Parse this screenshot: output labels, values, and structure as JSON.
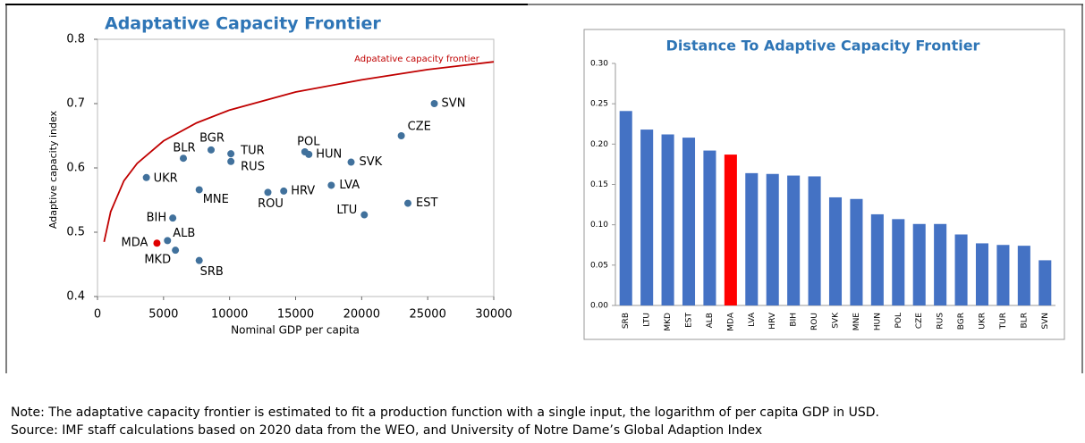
{
  "chart_data": [
    {
      "type": "scatter",
      "title": "Adaptative Capacity Frontier",
      "xlabel": "Nominal GDP per capita",
      "ylabel": "Adaptive capacity index",
      "xlim": [
        0,
        30000
      ],
      "ylim": [
        0.4,
        0.8
      ],
      "xticks": [
        0,
        5000,
        10000,
        15000,
        20000,
        25000,
        30000
      ],
      "yticks": [
        0.4,
        0.5,
        0.6,
        0.7,
        0.8
      ],
      "points": {
        "labels": [
          "SVN",
          "CZE",
          "POL",
          "HUN",
          "SVK",
          "TUR",
          "RUS",
          "BGR",
          "BLR",
          "UKR",
          "MNE",
          "ROU",
          "HRV",
          "LVA",
          "EST",
          "LTU",
          "BIH",
          "ALB",
          "MDA",
          "MKD",
          "SRB"
        ],
        "x": [
          25500,
          23000,
          15700,
          16000,
          19200,
          10100,
          10100,
          8600,
          6500,
          3700,
          7700,
          12900,
          14100,
          17700,
          23500,
          20200,
          5700,
          5300,
          4500,
          5900,
          7700
        ],
        "values": [
          0.7,
          0.65,
          0.625,
          0.621,
          0.609,
          0.622,
          0.61,
          0.628,
          0.615,
          0.585,
          0.566,
          0.562,
          0.564,
          0.573,
          0.545,
          0.527,
          0.522,
          0.487,
          0.483,
          0.472,
          0.456
        ],
        "colors": [
          "#41719c",
          "#41719c",
          "#41719c",
          "#41719c",
          "#41719c",
          "#41719c",
          "#41719c",
          "#41719c",
          "#41719c",
          "#41719c",
          "#41719c",
          "#41719c",
          "#41719c",
          "#41719c",
          "#41719c",
          "#41719c",
          "#41719c",
          "#41719c",
          "#e00000",
          "#41719c",
          "#41719c"
        ]
      },
      "series": [
        {
          "name": "Adpatative capacity frontier",
          "color": "#c00000",
          "x": [
            500,
            1000,
            2000,
            3000,
            5000,
            7500,
            10000,
            15000,
            20000,
            25000,
            30000
          ],
          "values": [
            0.485,
            0.532,
            0.58,
            0.607,
            0.642,
            0.67,
            0.69,
            0.718,
            0.737,
            0.753,
            0.765
          ]
        }
      ]
    },
    {
      "type": "bar",
      "title": "Distance To Adaptive Capacity Frontier",
      "categories": [
        "SRB",
        "LTU",
        "MKD",
        "EST",
        "ALB",
        "MDA",
        "LVA",
        "HRV",
        "BIH",
        "ROU",
        "SVK",
        "MNE",
        "HUN",
        "POL",
        "CZE",
        "RUS",
        "BGR",
        "UKR",
        "TUR",
        "BLR",
        "SVN"
      ],
      "values": [
        0.241,
        0.218,
        0.212,
        0.208,
        0.192,
        0.187,
        0.164,
        0.163,
        0.161,
        0.16,
        0.134,
        0.132,
        0.113,
        0.107,
        0.101,
        0.101,
        0.088,
        0.077,
        0.075,
        0.074,
        0.056
      ],
      "colors": [
        "#4472c4",
        "#4472c4",
        "#4472c4",
        "#4472c4",
        "#4472c4",
        "#ff0000",
        "#4472c4",
        "#4472c4",
        "#4472c4",
        "#4472c4",
        "#4472c4",
        "#4472c4",
        "#4472c4",
        "#4472c4",
        "#4472c4",
        "#4472c4",
        "#4472c4",
        "#4472c4",
        "#4472c4",
        "#4472c4",
        "#4472c4"
      ],
      "ylim": [
        0,
        0.3
      ],
      "yticks": [
        {
          "value": 0,
          "label": "0.00"
        },
        {
          "value": 0.05,
          "label": "0.05"
        },
        {
          "value": 0.1,
          "label": "0.10"
        },
        {
          "value": 0.15,
          "label": "0.15"
        },
        {
          "value": 0.2,
          "label": "0.20"
        },
        {
          "value": 0.25,
          "label": "0.25"
        },
        {
          "value": 0.3,
          "label": "0.30"
        }
      ]
    }
  ],
  "note": [
    "Note: The adaptative capacity frontier is estimated to fit a production function with a single input, the logarithm of per capita GDP in USD.",
    "Source: IMF staff calculations based on 2020 data from the WEO, and University of Notre Dame’s Global Adaption Index"
  ]
}
